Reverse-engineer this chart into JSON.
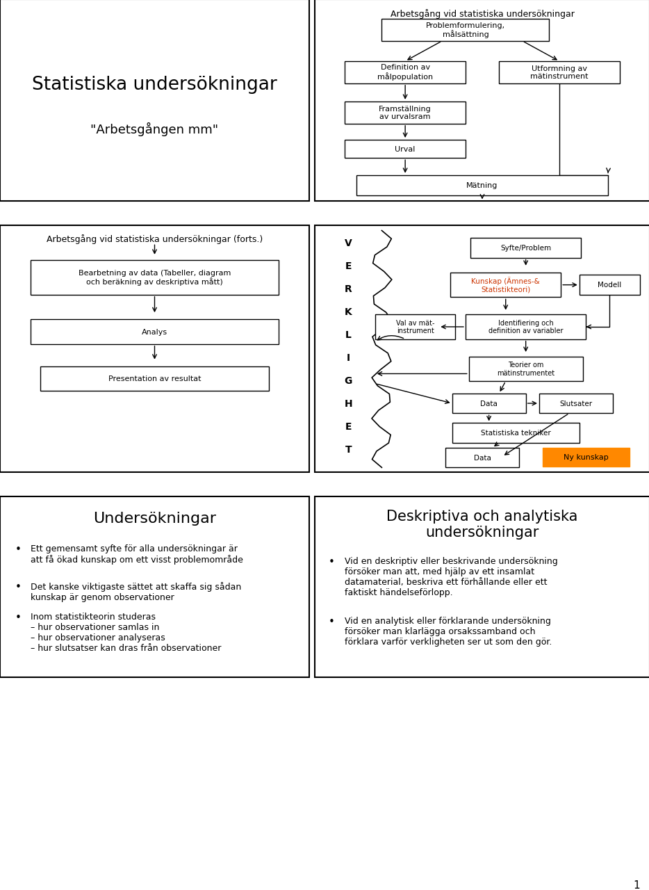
{
  "bg_color": "#ffffff",
  "panel1": {
    "title": "Statistiska undersökningar",
    "subtitle": "\"Arbetsgången mm\""
  },
  "panel2": {
    "title": "Arbetsgång vid statistiska undersökningar"
  },
  "panel3": {
    "title": "Arbetsgång vid statistiska undersökningar (forts.)"
  },
  "panel4": {
    "verklig_letters": [
      "V",
      "E",
      "R",
      "K",
      "L",
      "I",
      "G",
      "H",
      "E",
      "T"
    ]
  },
  "panel5": {
    "title": "Undersökningar",
    "bullet1": "Ett gemensamt syfte för alla undersökningar är\natt få ökad kunskap om ett visst problemområde",
    "bullet2": "Det kanske viktigaste sättet att skaffa sig sådan\nkunskap är genom observationer",
    "bullet3": "Inom statistikteorin studeras\n– hur observationer samlas in\n– hur observationer analyseras\n– hur slutsatser kan dras från observationer"
  },
  "panel6": {
    "title": "Deskriptiva och analytiska\nundersökningar",
    "bullet1": "Vid en deskriptiv eller beskrivande undersökning\nförsöker man att, med hjälp av ett insamlat\ndatamaterial, beskriva ett förhållande eller ett\nfaktiskt händelseförlopp.",
    "bullet2": "Vid en analytisk eller förklarande undersökning\nförsöker man klarlägga orsakssamband och\nförklara varför verkligheten ser ut som den gör."
  },
  "page_number": "1",
  "kunskap_color": "#cc3300",
  "ny_kunskap_color": "#ff8800",
  "box_edge": "#000000",
  "arrow_color": "#000000"
}
